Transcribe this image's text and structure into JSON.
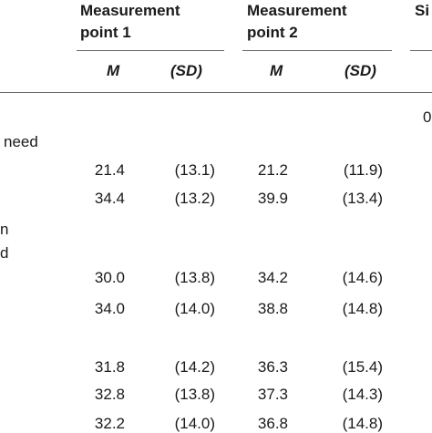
{
  "table": {
    "group_headers": {
      "mp1_line1": "Measurement",
      "mp1_line2": "point 1",
      "mp2_line1": "Measurement",
      "mp2_line2": "point 2",
      "next_fragment": "Si"
    },
    "sub_headers": {
      "mp1_m": "M",
      "mp1_sd": "(SD)",
      "mp2_m": "M",
      "mp2_sd": "(SD)"
    },
    "left_labels": {
      "row_label_need": "need",
      "row_label_n": "n",
      "row_label_d": "d"
    },
    "right_fragment": "0",
    "rows": [
      {
        "m1": "21.4",
        "sd1": "(13.1)",
        "m2": "21.2",
        "sd2": "(11.9)"
      },
      {
        "m1": "34.4",
        "sd1": "(13.2)",
        "m2": "39.9",
        "sd2": "(13.4)"
      },
      {
        "m1": "30.0",
        "sd1": "(13.8)",
        "m2": "34.2",
        "sd2": "(14.6)"
      },
      {
        "m1": "34.0",
        "sd1": "(14.0)",
        "m2": "38.8",
        "sd2": "(14.8)"
      },
      {
        "m1": "31.8",
        "sd1": "(14.2)",
        "m2": "36.3",
        "sd2": "(15.4)"
      },
      {
        "m1": "32.8",
        "sd1": "(13.8)",
        "m2": "37.3",
        "sd2": "(14.3)"
      },
      {
        "m1": "32.2",
        "sd1": "(14.0)",
        "m2": "36.8",
        "sd2": "(14.8)"
      }
    ]
  }
}
